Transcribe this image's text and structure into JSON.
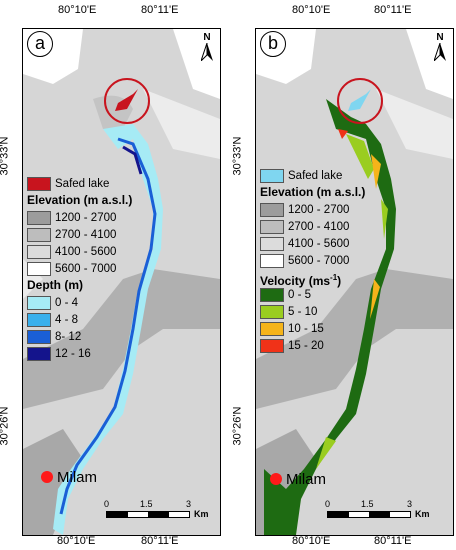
{
  "ticks": {
    "lon_left": "80°10'E",
    "lon_right": "80°11'E",
    "lat_top": "30°33'N",
    "lat_bottom": "30°26'N"
  },
  "north_label": "N",
  "panels": [
    {
      "letter": "a",
      "lake_label": "Safed lake",
      "lake_color": "#c8141e",
      "elevation_title": "Elevation (m a.s.l.)",
      "elevation_classes": [
        {
          "label": "1200 - 2700",
          "color": "#9c9c9c"
        },
        {
          "label": "2700 - 4100",
          "color": "#bdbdbd"
        },
        {
          "label": "4100 - 5600",
          "color": "#dcdcdc"
        },
        {
          "label": "5600 - 7000",
          "color": "#ffffff"
        }
      ],
      "value_title": "Depth (m)",
      "value_classes": [
        {
          "label": "0 - 4",
          "color": "#a6ebf5"
        },
        {
          "label": "4 - 8",
          "color": "#3ab0ec"
        },
        {
          "label": "8- 12",
          "color": "#1a5fd6"
        },
        {
          "label": "12 - 16",
          "color": "#14148c"
        }
      ],
      "town": "Milam",
      "scale": {
        "ticks": [
          "0",
          "1.5",
          "3"
        ],
        "unit": "Km"
      }
    },
    {
      "letter": "b",
      "lake_label": "Safed lake",
      "lake_color": "#7fd6f0",
      "elevation_title": "Elevation (m a.s.l.)",
      "elevation_classes": [
        {
          "label": "1200 - 2700",
          "color": "#9c9c9c"
        },
        {
          "label": "2700 - 4100",
          "color": "#bdbdbd"
        },
        {
          "label": "4100 - 5600",
          "color": "#dcdcdc"
        },
        {
          "label": "5600 - 7000",
          "color": "#ffffff"
        }
      ],
      "value_title": "Velocity (ms",
      "value_title_sup": "-1",
      "value_title_end": ")",
      "value_classes": [
        {
          "label": "0 - 5",
          "color": "#1e6b12"
        },
        {
          "label": "5 - 10",
          "color": "#9acd20"
        },
        {
          "label": "10 - 15",
          "color": "#f5b41a"
        },
        {
          "label": "15 - 20",
          "color": "#f03218"
        }
      ],
      "town": "Milam",
      "scale": {
        "ticks": [
          "0",
          "1.5",
          "3"
        ],
        "unit": "Km"
      }
    }
  ]
}
